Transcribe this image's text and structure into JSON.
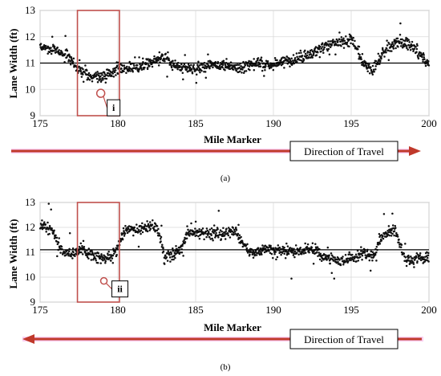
{
  "chart_data": [
    {
      "type": "scatter",
      "panel_label": "(a)",
      "xlabel": "Mile Marker",
      "ylabel": "Lane Width (ft)",
      "xlim": [
        175,
        200
      ],
      "ylim": [
        9,
        13
      ],
      "x_ticks": [
        "175",
        "180",
        "185",
        "190",
        "195",
        "200"
      ],
      "y_ticks": [
        "9",
        "10",
        "11",
        "12",
        "13"
      ],
      "grid": true,
      "reference_line": 11,
      "highlight_region": [
        177.4,
        180.1
      ],
      "callout": {
        "label": "i",
        "x": 178.9,
        "y": 9.85
      },
      "direction": {
        "label": "Direction of Travel",
        "arrow": "right"
      },
      "profile": [
        [
          175,
          11.6
        ],
        [
          176,
          11.5
        ],
        [
          176.8,
          11.3
        ],
        [
          177.3,
          10.9
        ],
        [
          177.8,
          10.6
        ],
        [
          178.5,
          10.5
        ],
        [
          179.5,
          10.6
        ],
        [
          180.2,
          10.8
        ],
        [
          181,
          10.8
        ],
        [
          182,
          11.0
        ],
        [
          183,
          11.2
        ],
        [
          184,
          10.8
        ],
        [
          185,
          10.8
        ],
        [
          186,
          10.9
        ],
        [
          187,
          10.9
        ],
        [
          188,
          10.8
        ],
        [
          189,
          11.0
        ],
        [
          190,
          10.9
        ],
        [
          191,
          11.1
        ],
        [
          192,
          11.2
        ],
        [
          193,
          11.5
        ],
        [
          194,
          11.8
        ],
        [
          195,
          11.9
        ],
        [
          195.8,
          11.0
        ],
        [
          196.3,
          10.7
        ],
        [
          197,
          11.3
        ],
        [
          197.5,
          11.6
        ],
        [
          198,
          11.8
        ],
        [
          199,
          11.6
        ],
        [
          200,
          11.0
        ]
      ]
    },
    {
      "type": "scatter",
      "panel_label": "(b)",
      "xlabel": "Mile Marker",
      "ylabel": "Lane Width (ft)",
      "xlim": [
        175,
        200
      ],
      "ylim": [
        9,
        13
      ],
      "x_ticks": [
        "175",
        "180",
        "185",
        "190",
        "195",
        "200"
      ],
      "y_ticks": [
        "9",
        "10",
        "11",
        "12",
        "13"
      ],
      "grid": true,
      "reference_line": 11.1,
      "highlight_region": [
        177.4,
        180.1
      ],
      "callout": {
        "label": "ii",
        "x": 179.1,
        "y": 9.85
      },
      "direction": {
        "label": "Direction of Travel",
        "arrow": "left"
      },
      "profile": [
        [
          175,
          12.1
        ],
        [
          175.8,
          11.9
        ],
        [
          176.3,
          11.1
        ],
        [
          177,
          10.9
        ],
        [
          177.6,
          11.1
        ],
        [
          178.3,
          10.9
        ],
        [
          179,
          10.7
        ],
        [
          179.8,
          10.9
        ],
        [
          180.5,
          11.9
        ],
        [
          181.5,
          12.0
        ],
        [
          182.5,
          12.0
        ],
        [
          183,
          10.8
        ],
        [
          184,
          11.0
        ],
        [
          184.5,
          11.8
        ],
        [
          185.5,
          11.8
        ],
        [
          186.5,
          11.7
        ],
        [
          187.5,
          11.9
        ],
        [
          188.5,
          11.0
        ],
        [
          189.5,
          11.1
        ],
        [
          190.5,
          11.1
        ],
        [
          191.5,
          11.0
        ],
        [
          192.5,
          11.2
        ],
        [
          193,
          10.9
        ],
        [
          194,
          10.7
        ],
        [
          195,
          10.7
        ],
        [
          195.8,
          11.0
        ],
        [
          196.4,
          10.8
        ],
        [
          197,
          11.7
        ],
        [
          197.8,
          11.9
        ],
        [
          198.5,
          10.7
        ],
        [
          200,
          10.8
        ]
      ]
    }
  ]
}
